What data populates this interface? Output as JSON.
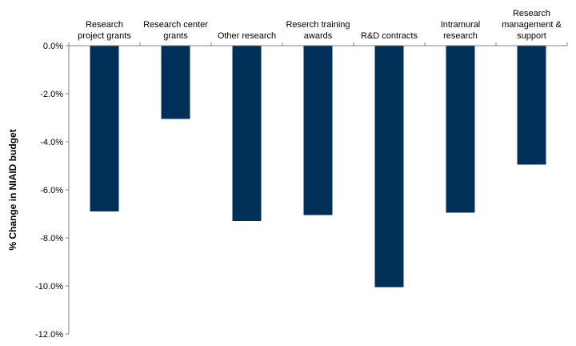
{
  "chart_data": {
    "type": "bar",
    "categories": [
      [
        "Research",
        "project grants"
      ],
      [
        "Research center",
        "grants"
      ],
      [
        "Other research"
      ],
      [
        "Reserch training",
        "awards"
      ],
      [
        "R&D contracts"
      ],
      [
        "Intramural",
        "research"
      ],
      [
        "Research",
        "management &",
        "support"
      ]
    ],
    "values": [
      -6.9,
      -3.05,
      -7.3,
      -7.05,
      -10.05,
      -6.95,
      -4.95
    ],
    "ylabel": "% Change in NIAID budget",
    "ylim": [
      -12,
      0
    ],
    "yticks": [
      0,
      -2,
      -4,
      -6,
      -8,
      -10,
      -12
    ],
    "ytick_labels": [
      "0.0%",
      "-2.0%",
      "-4.0%",
      "-6.0%",
      "-8.0%",
      "-10.0%",
      "-12.0%"
    ],
    "bar_color": "#003057",
    "axis_color": "#808080",
    "grid": false,
    "legend": "none"
  }
}
